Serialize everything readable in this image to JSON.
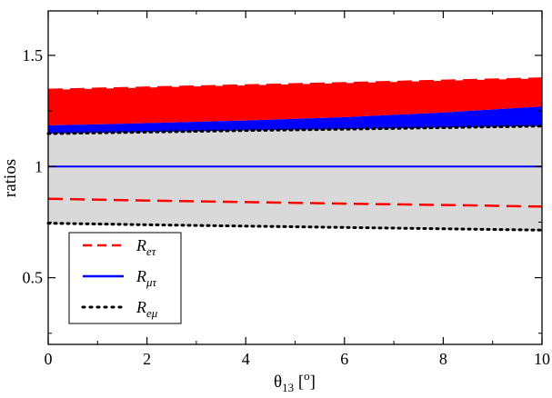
{
  "chart_data": {
    "type": "line",
    "xlabel_main": "θ",
    "xlabel_sub": "13",
    "xlabel_rest": " [",
    "xlabel_sup": "o",
    "xlabel_end": "]",
    "ylabel": "ratios",
    "xlim": [
      0,
      10
    ],
    "ylim": [
      0.2,
      1.7
    ],
    "x_ticks": [
      0,
      2,
      4,
      6,
      8,
      10
    ],
    "x_tick_labels": [
      "0",
      "2",
      "4",
      "6",
      "8",
      "10"
    ],
    "y_ticks": [
      0.5,
      1,
      1.5
    ],
    "y_tick_labels": [
      "0.5",
      "1",
      "1.5"
    ],
    "grid": false,
    "legend_position": "bottom-left",
    "series": [
      {
        "name": "R_eτ",
        "label_main": "R",
        "label_sub": "eτ",
        "style": "dashed",
        "color": "#ff0000",
        "x": [
          0,
          2,
          4,
          6,
          8,
          10
        ],
        "values": [
          0.855,
          0.847,
          0.84,
          0.833,
          0.827,
          0.82
        ]
      },
      {
        "name": "R_μτ",
        "label_main": "R",
        "label_sub": "μτ",
        "style": "solid",
        "color": "#0000ff",
        "x": [
          0,
          2,
          4,
          6,
          8,
          10
        ],
        "values": [
          1.0,
          1.0,
          1.0,
          1.0,
          1.0,
          1.0
        ]
      },
      {
        "name": "R_eμ",
        "label_main": "R",
        "label_sub": "eμ",
        "style": "dotted",
        "color": "#000000",
        "x": [
          0,
          2,
          4,
          6,
          8,
          10
        ],
        "values": [
          0.745,
          0.738,
          0.732,
          0.726,
          0.72,
          0.714
        ]
      }
    ],
    "upper_bounds": {
      "red_dashed_upper": {
        "x": [
          0,
          2,
          4,
          6,
          8,
          10
        ],
        "values": [
          1.345,
          1.355,
          1.365,
          1.375,
          1.386,
          1.396
        ]
      },
      "blue_upper": {
        "x": [
          0,
          2,
          4,
          6,
          8,
          10
        ],
        "values": [
          1.185,
          1.195,
          1.207,
          1.222,
          1.243,
          1.27
        ]
      },
      "black_dotted_upper": {
        "x": [
          0,
          2,
          4,
          6,
          8,
          10
        ],
        "values": [
          1.148,
          1.155,
          1.162,
          1.168,
          1.175,
          1.182
        ]
      }
    },
    "bands": [
      {
        "name": "red band",
        "color": "#ff0000",
        "lower": "blue_upper",
        "upper": "red_dashed_upper"
      },
      {
        "name": "blue band",
        "color": "#0000ff",
        "lower": "black_dotted_upper",
        "upper": "blue_upper"
      },
      {
        "name": "gray band",
        "color": "#d9d9d9",
        "lower": "R_eμ",
        "upper": "black_dotted_upper"
      }
    ]
  }
}
